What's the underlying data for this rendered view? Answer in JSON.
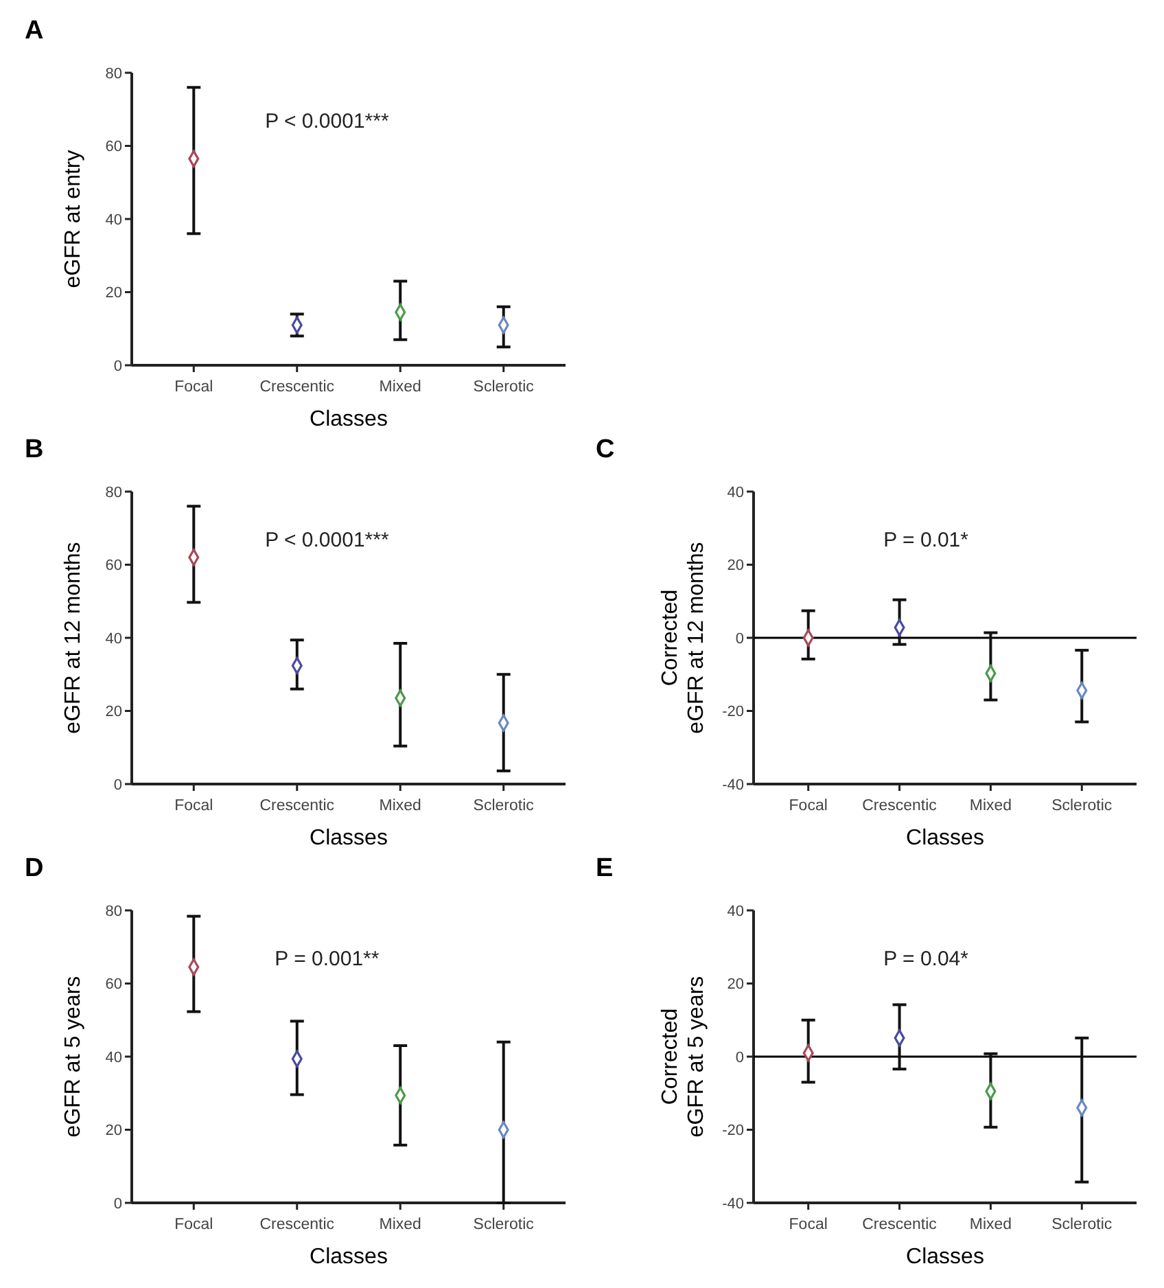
{
  "chart_data": [
    {
      "type": "scatter",
      "title": "A",
      "xlabel": "Classes",
      "ylabel": "eGFR at entry",
      "categories": [
        "Focal",
        "Crescentic",
        "Mixed",
        "Sclerotic"
      ],
      "values": [
        56.5,
        11,
        14.5,
        11
      ],
      "errors": [
        [
          36,
          76
        ],
        [
          8,
          14
        ],
        [
          7,
          23
        ],
        [
          5,
          16
        ]
      ],
      "colors": [
        "#a8485a",
        "#4a4aa0",
        "#4a9a4a",
        "#6a88c0"
      ],
      "marker": "diamond",
      "ylim": [
        0,
        80
      ],
      "yticks": [
        0,
        20,
        40,
        60,
        80
      ],
      "annotations": [
        "P < 0.0001***"
      ]
    },
    {
      "type": "scatter",
      "title": "B",
      "xlabel": "Classes",
      "ylabel": "eGFR at 12 months",
      "categories": [
        "Focal",
        "Crescentic",
        "Mixed",
        "Sclerotic"
      ],
      "values": [
        62,
        32.4,
        23.5,
        16.7
      ],
      "errors": [
        [
          49.7,
          76
        ],
        [
          26,
          39.4
        ],
        [
          10.4,
          38.5
        ],
        [
          3.6,
          30
        ]
      ],
      "colors": [
        "#a8485a",
        "#4a4aa0",
        "#4a9a4a",
        "#6a88c0"
      ],
      "marker": "diamond",
      "ylim": [
        0,
        80
      ],
      "yticks": [
        0,
        20,
        40,
        60,
        80
      ],
      "annotations": [
        "P < 0.0001***"
      ]
    },
    {
      "type": "scatter",
      "title": "C",
      "xlabel": "Classes",
      "ylabel": "Corrected\neGFR at 12 months",
      "categories": [
        "Focal",
        "Crescentic",
        "Mixed",
        "Sclerotic"
      ],
      "values": [
        0,
        2.8,
        -9.7,
        -14.4
      ],
      "errors": [
        [
          -5.8,
          7.4
        ],
        [
          -1.8,
          10.4
        ],
        [
          -17,
          1.4
        ],
        [
          -23,
          -3.4
        ]
      ],
      "colors": [
        "#a8485a",
        "#4a4aa0",
        "#4a9a4a",
        "#6a88c0"
      ],
      "marker": "diamond",
      "ylim": [
        -40,
        40
      ],
      "yticks": [
        -40,
        -20,
        0,
        20,
        40
      ],
      "ref_lines": [
        {
          "axis": "y",
          "value": 0,
          "color": "#000000"
        }
      ],
      "annotations": [
        "P = 0.01*"
      ]
    },
    {
      "type": "scatter",
      "title": "D",
      "xlabel": "Classes",
      "ylabel": "eGFR at 5 years",
      "categories": [
        "Focal",
        "Crescentic",
        "Mixed",
        "Sclerotic"
      ],
      "values": [
        64.5,
        39.4,
        29.4,
        20
      ],
      "errors": [
        [
          52.3,
          78.4
        ],
        [
          29.6,
          49.7
        ],
        [
          15.8,
          43
        ],
        [
          0,
          44
        ]
      ],
      "colors": [
        "#a8485a",
        "#4a4aa0",
        "#4a9a4a",
        "#6a88c0"
      ],
      "marker": "diamond",
      "ylim": [
        0,
        80
      ],
      "yticks": [
        0,
        20,
        40,
        60,
        80
      ],
      "annotations": [
        "P = 0.001**"
      ]
    },
    {
      "type": "scatter",
      "title": "E",
      "xlabel": "Classes",
      "ylabel": "Corrected\neGFR at 5 years",
      "categories": [
        "Focal",
        "Crescentic",
        "Mixed",
        "Sclerotic"
      ],
      "values": [
        1,
        5.1,
        -9.5,
        -14
      ],
      "errors": [
        [
          -7,
          10
        ],
        [
          -3.4,
          14.2
        ],
        [
          -19.3,
          0.8
        ],
        [
          -34.3,
          5.1
        ]
      ],
      "colors": [
        "#a8485a",
        "#4a4aa0",
        "#4a9a4a",
        "#6a88c0"
      ],
      "marker": "diamond",
      "ylim": [
        -40,
        40
      ],
      "yticks": [
        -40,
        -20,
        0,
        20,
        40
      ],
      "ref_lines": [
        {
          "axis": "y",
          "value": 0,
          "color": "#000000"
        }
      ],
      "annotations": [
        "P = 0.04*"
      ]
    }
  ]
}
